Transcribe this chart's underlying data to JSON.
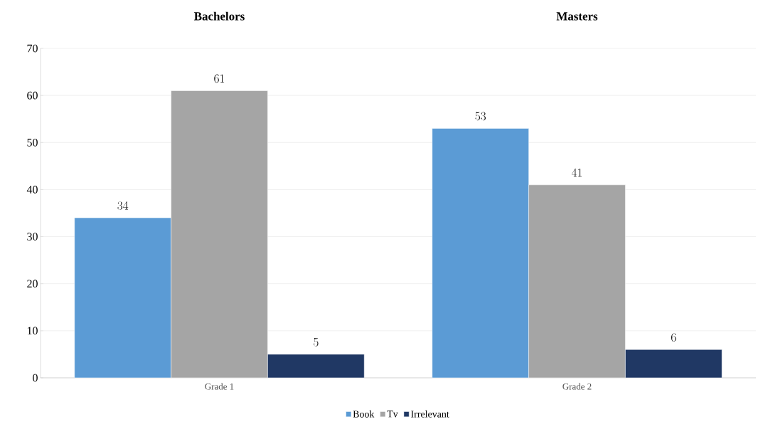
{
  "chart_data": {
    "type": "bar",
    "categories": [
      "Grade 1",
      "Grade 2"
    ],
    "series": [
      {
        "name": "Book",
        "color": "#5b9bd5",
        "values": [
          34,
          53
        ]
      },
      {
        "name": "Tv",
        "color": "#a5a5a5",
        "values": [
          61,
          41
        ]
      },
      {
        "name": "Irrelevant",
        "color": "#203864",
        "values": [
          5,
          6
        ]
      }
    ],
    "annotations": [
      "Bachelors",
      "Masters"
    ],
    "ylim": [
      0,
      70
    ],
    "yticks": [
      0,
      10,
      20,
      30,
      40,
      50,
      60,
      70
    ],
    "grid": "y",
    "legend": "bottom",
    "data_labels": true
  }
}
